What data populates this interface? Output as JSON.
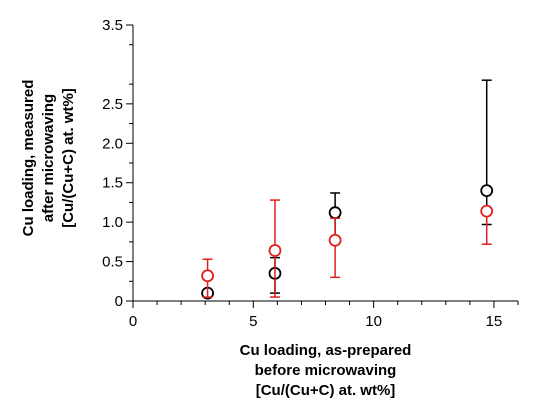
{
  "chart_data": {
    "type": "scatter",
    "xlabel": [
      "Cu loading, as-prepared",
      "before microwaving",
      "[Cu/(Cu+C) at. wt%]"
    ],
    "ylabel": [
      "Cu loading, measured",
      "after microwaving",
      "[Cu/(Cu+C) at. wt%]"
    ],
    "xlim": [
      0,
      16
    ],
    "ylim": [
      0,
      3.5
    ],
    "x_ticks": [
      0,
      5,
      10,
      15
    ],
    "y_ticks": [
      0,
      0.5,
      1.0,
      1.5,
      2.0,
      2.5,
      3.5
    ],
    "x_tick_labels": [
      "0",
      "5",
      "10",
      "15"
    ],
    "y_tick_labels": [
      "0",
      "0.5",
      "1.0",
      "1.5",
      "2.0",
      "2.5",
      "3.5"
    ],
    "grid": false,
    "marker": "open-circle",
    "series": [
      {
        "color": "#000000",
        "points": [
          {
            "x": 3.1,
            "y": 0.1,
            "err_low": null,
            "err_high": null
          },
          {
            "x": 5.9,
            "y": 0.35,
            "err_low": 0.1,
            "err_high": 0.55
          },
          {
            "x": 8.4,
            "y": 1.12,
            "err_low": 0.75,
            "err_high": 1.37
          },
          {
            "x": 14.7,
            "y": 1.4,
            "err_low": 0.97,
            "err_high": 2.8
          }
        ]
      },
      {
        "color": "#e0201b",
        "points": [
          {
            "x": 3.1,
            "y": 0.32,
            "err_low": 0.05,
            "err_high": 0.53
          },
          {
            "x": 5.9,
            "y": 0.64,
            "err_low": 0.05,
            "err_high": 1.28
          },
          {
            "x": 8.4,
            "y": 0.77,
            "err_low": 0.3,
            "err_high": 1.05
          },
          {
            "x": 14.7,
            "y": 1.14,
            "err_low": 0.72,
            "err_high": 1.16
          }
        ]
      }
    ]
  }
}
